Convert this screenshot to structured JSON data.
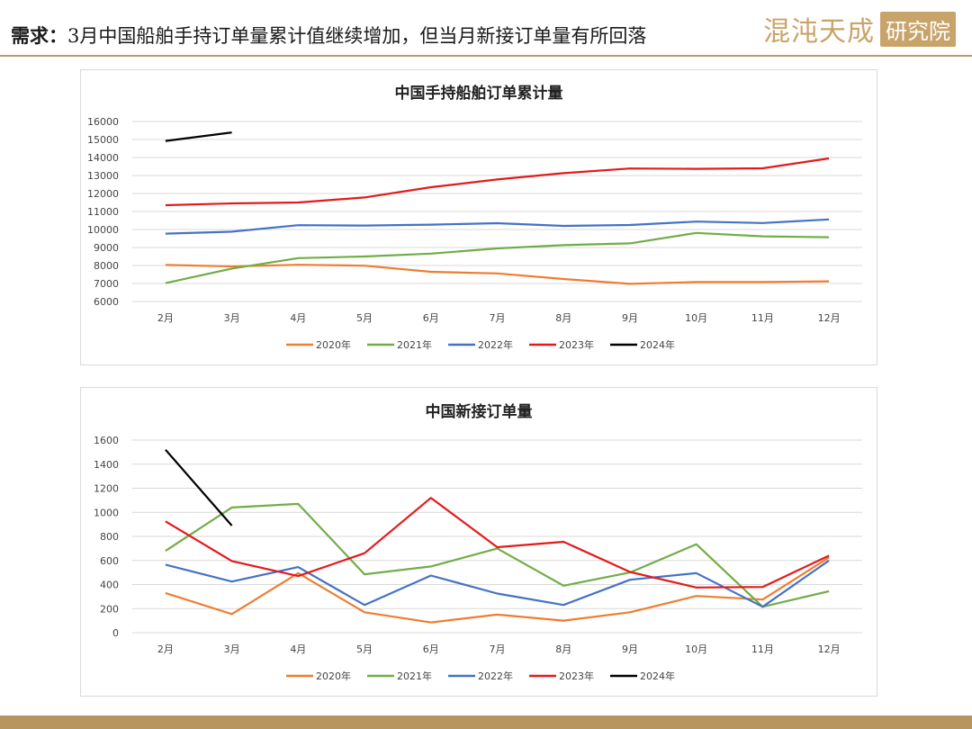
{
  "header": {
    "title_prefix": "需求：",
    "title_body": "3月中国船舶手持订单量累计值继续增加，但当月新接订单量有所回落",
    "logo_text": "混沌天成",
    "logo_box_text": "研究院"
  },
  "colors": {
    "2020年": "#ed7d31",
    "2021年": "#70ad47",
    "2022年": "#4472c4",
    "2023年": "#e31a1c",
    "2024年": "#000000",
    "gold": "#b8955f"
  },
  "chart_data": [
    {
      "type": "line",
      "title": "中国手持船舶订单累计量",
      "categories": [
        "2月",
        "3月",
        "4月",
        "5月",
        "6月",
        "7月",
        "8月",
        "9月",
        "10月",
        "11月",
        "12月"
      ],
      "ylim": [
        6000,
        16000
      ],
      "yticks": [
        6000,
        7000,
        8000,
        9000,
        10000,
        11000,
        12000,
        13000,
        14000,
        15000,
        16000
      ],
      "grid": true,
      "legend": "bottom",
      "series": [
        {
          "name": "2020年",
          "values": [
            8030,
            7950,
            8040,
            7990,
            7650,
            7560,
            7250,
            6980,
            7080,
            7080,
            7120
          ]
        },
        {
          "name": "2021年",
          "values": [
            7020,
            7830,
            8410,
            8500,
            8660,
            8950,
            9130,
            9230,
            9810,
            9620,
            9570
          ]
        },
        {
          "name": "2022年",
          "values": [
            9770,
            9880,
            10240,
            10220,
            10270,
            10350,
            10200,
            10250,
            10440,
            10360,
            10560
          ]
        },
        {
          "name": "2023年",
          "values": [
            11350,
            11450,
            11500,
            11780,
            12350,
            12780,
            13130,
            13390,
            13370,
            13400,
            13950
          ]
        },
        {
          "name": "2024年",
          "values": [
            14920,
            15390,
            null,
            null,
            null,
            null,
            null,
            null,
            null,
            null,
            null
          ]
        }
      ]
    },
    {
      "type": "line",
      "title": "中国新接订单量",
      "categories": [
        "2月",
        "3月",
        "4月",
        "5月",
        "6月",
        "7月",
        "8月",
        "9月",
        "10月",
        "11月",
        "12月"
      ],
      "ylim": [
        0,
        1600
      ],
      "yticks": [
        0,
        200,
        400,
        600,
        800,
        1000,
        1200,
        1400,
        1600
      ],
      "grid": true,
      "legend": "bottom",
      "series": [
        {
          "name": "2020年",
          "values": [
            330,
            155,
            495,
            170,
            85,
            150,
            100,
            170,
            305,
            275,
            625
          ]
        },
        {
          "name": "2021年",
          "values": [
            680,
            1040,
            1070,
            485,
            550,
            700,
            390,
            500,
            735,
            215,
            345
          ]
        },
        {
          "name": "2022年",
          "values": [
            565,
            425,
            545,
            230,
            475,
            325,
            230,
            440,
            495,
            215,
            600
          ]
        },
        {
          "name": "2023年",
          "values": [
            925,
            595,
            470,
            660,
            1120,
            710,
            755,
            505,
            375,
            380,
            640
          ]
        },
        {
          "name": "2024年",
          "values": [
            1520,
            890,
            null,
            null,
            null,
            null,
            null,
            null,
            null,
            null,
            null
          ]
        }
      ]
    }
  ]
}
